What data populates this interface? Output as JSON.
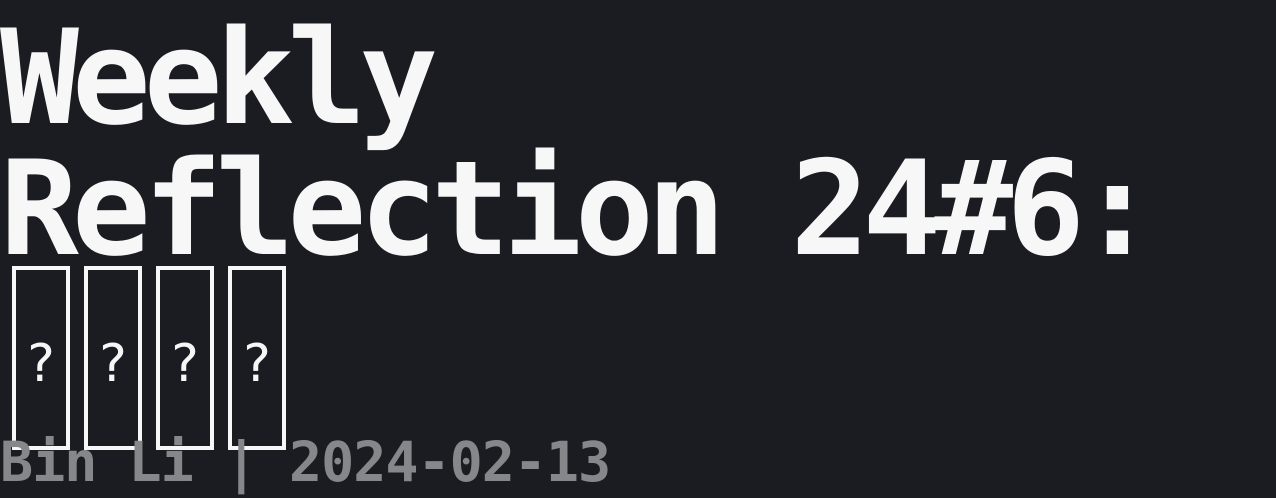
{
  "post": {
    "title_line_1": "Weekly",
    "title_line_2": "Reflection 24#6:",
    "title_unrendered_glyphs": [
      "?",
      "?",
      "?",
      "?"
    ],
    "byline": "Bin Li | 2024-02-13"
  },
  "colors": {
    "background": "#1b1c21",
    "title": "#f7f7f7",
    "byline": "#86878a"
  }
}
